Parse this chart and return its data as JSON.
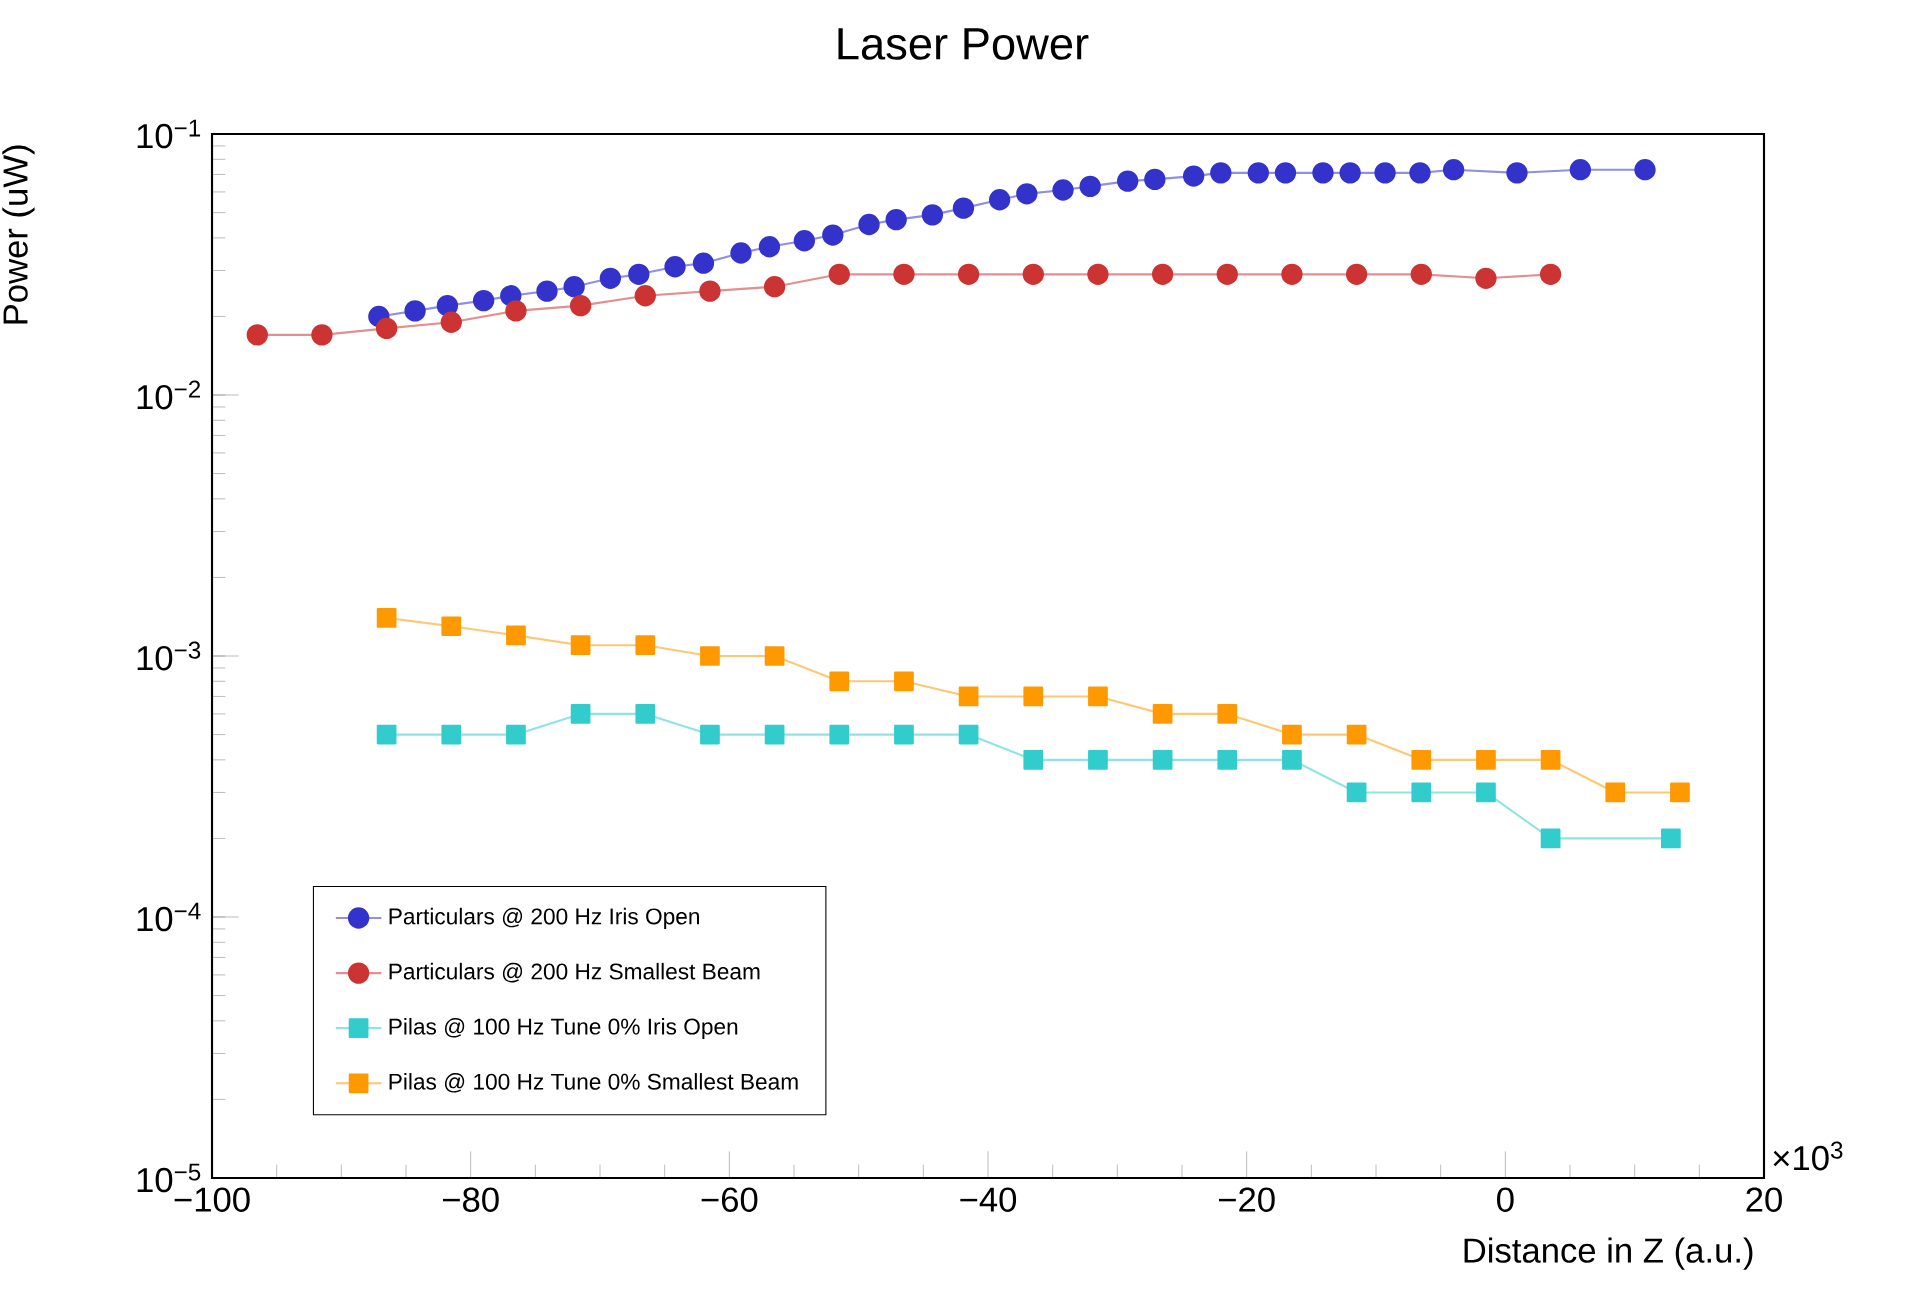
{
  "chart_data": {
    "type": "line",
    "title": "Laser Power",
    "xlabel": "Distance in Z (a.u.)",
    "ylabel": "Power (uW)",
    "log": "y",
    "grid": false,
    "legend": "bottom left",
    "xlim": [
      -100,
      20
    ],
    "ylim": [
      1e-05,
      0.1
    ],
    "xticks": [
      {
        "value": -100,
        "label": "−100"
      },
      {
        "value": -80,
        "label": "−80"
      },
      {
        "value": -60,
        "label": "−60"
      },
      {
        "value": -40,
        "label": "−40"
      },
      {
        "value": -20,
        "label": "−20"
      },
      0,
      20
    ],
    "yticks": [
      {
        "value": 1e-05,
        "label": "10$^{−5}$"
      },
      {
        "value": 0.0001,
        "label": "10$^{−4}$"
      },
      {
        "value": 0.001,
        "label": "10$^{−3}$"
      },
      {
        "value": 0.01,
        "label": "10$^{−2}$"
      },
      {
        "value": 0.1,
        "label": "10$^{−1}$"
      }
    ],
    "annotations": [
      "×10$^{3}$"
    ],
    "series": [
      {
        "name": "Particulars @ 200 Hz Iris Open",
        "color": "#3333cc",
        "marker": "circle",
        "x": [
          -87.1,
          -84.3,
          -81.8,
          -79.0,
          -76.9,
          -74.1,
          -72.0,
          -69.2,
          -67.0,
          -64.2,
          -62.0,
          -59.1,
          -56.9,
          -54.2,
          -52.0,
          -49.2,
          -47.1,
          -44.3,
          -41.9,
          -39.1,
          -37.0,
          -34.2,
          -32.1,
          -29.2,
          -27.1,
          -24.1,
          -22.0,
          -19.1,
          -17.0,
          -14.1,
          -12.0,
          -9.3,
          -6.6,
          -4.0,
          0.9,
          5.8,
          10.8
        ],
        "values": [
          0.02,
          0.021,
          0.022,
          0.023,
          0.024,
          0.025,
          0.026,
          0.028,
          0.029,
          0.031,
          0.032,
          0.035,
          0.037,
          0.039,
          0.041,
          0.045,
          0.047,
          0.049,
          0.052,
          0.056,
          0.059,
          0.061,
          0.063,
          0.066,
          0.067,
          0.069,
          0.071,
          0.071,
          0.071,
          0.071,
          0.071,
          0.071,
          0.071,
          0.073,
          0.071,
          0.073,
          0.073
        ]
      },
      {
        "name": "Particulars @ 200 Hz Smallest Beam",
        "color": "#cc3333",
        "marker": "circle",
        "x": [
          -96.5,
          -91.5,
          -86.5,
          -81.5,
          -76.5,
          -71.5,
          -66.5,
          -61.5,
          -56.5,
          -51.5,
          -46.5,
          -41.5,
          -36.5,
          -31.5,
          -26.5,
          -21.5,
          -16.5,
          -11.5,
          -6.5,
          -1.5,
          3.5
        ],
        "values": [
          0.017,
          0.017,
          0.018,
          0.019,
          0.021,
          0.022,
          0.024,
          0.025,
          0.026,
          0.029,
          0.029,
          0.029,
          0.029,
          0.029,
          0.029,
          0.029,
          0.029,
          0.029,
          0.029,
          0.028,
          0.029
        ]
      },
      {
        "name": "Pilas @ 100 Hz Tune 0% Iris Open",
        "color": "#33cccc",
        "marker": "square",
        "x": [
          -86.5,
          -81.5,
          -76.5,
          -71.5,
          -66.5,
          -61.5,
          -56.5,
          -51.5,
          -46.5,
          -41.5,
          -36.5,
          -31.5,
          -26.5,
          -21.5,
          -16.5,
          -11.5,
          -6.5,
          -1.5,
          3.5,
          12.8
        ],
        "values": [
          0.0005,
          0.0005,
          0.0005,
          0.0006,
          0.0006,
          0.0005,
          0.0005,
          0.0005,
          0.0005,
          0.0005,
          0.0004,
          0.0004,
          0.0004,
          0.0004,
          0.0004,
          0.0003,
          0.0003,
          0.0003,
          0.0002,
          0.0002
        ]
      },
      {
        "name": "Pilas @ 100 Hz Tune 0% Smallest Beam",
        "color": "#ff9900",
        "marker": "square",
        "x": [
          -86.5,
          -81.5,
          -76.5,
          -71.5,
          -66.5,
          -61.5,
          -56.5,
          -51.5,
          -46.5,
          -41.5,
          -36.5,
          -31.5,
          -26.5,
          -21.5,
          -16.5,
          -11.5,
          -6.5,
          -1.5,
          3.5,
          8.5,
          13.5
        ],
        "values": [
          0.0014,
          0.0013,
          0.0012,
          0.0011,
          0.0011,
          0.001,
          0.001,
          0.0008,
          0.0008,
          0.0007,
          0.0007,
          0.0007,
          0.0006,
          0.0006,
          0.0005,
          0.0005,
          0.0004,
          0.0004,
          0.0004,
          0.0003,
          0.0003
        ]
      }
    ]
  }
}
